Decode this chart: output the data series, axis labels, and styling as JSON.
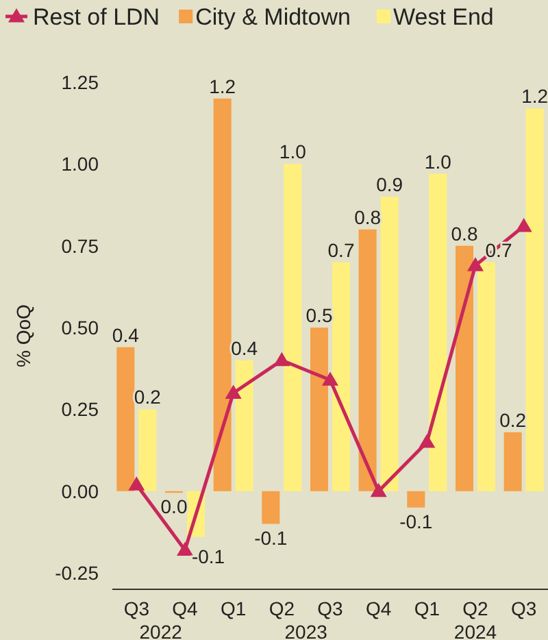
{
  "chart_data": {
    "type": "bar",
    "ylabel": "% QoQ",
    "categories": [
      "Q3",
      "Q4",
      "Q1",
      "Q2",
      "Q3",
      "Q4",
      "Q1",
      "Q2",
      "Q3"
    ],
    "series": [
      {
        "name": "Rest of LDN",
        "type": "line",
        "color": "#c8285a",
        "marker": "triangle",
        "values": [
          0.02,
          -0.18,
          0.3,
          0.4,
          0.34,
          0.0,
          0.15,
          0.69,
          0.81
        ]
      },
      {
        "name": "City & Midtown",
        "color": "#f5a04a",
        "values": [
          0.44,
          -0.005,
          1.2,
          -0.1,
          0.5,
          0.8,
          -0.05,
          0.75,
          0.18
        ],
        "value_labels": [
          "0.4",
          "0.0",
          "1.2",
          "-0.1",
          "0.5",
          "0.8",
          "-0.1",
          "0.8",
          "0.2"
        ]
      },
      {
        "name": "West End",
        "color": "#fff07e",
        "values": [
          0.25,
          -0.14,
          0.4,
          1.0,
          0.7,
          0.9,
          0.97,
          0.7,
          1.17
        ],
        "value_labels": [
          "0.2",
          "-0.1",
          "0.4",
          "1.0",
          "0.7",
          "0.9",
          "1.0",
          "0.7",
          "1.2"
        ]
      }
    ],
    "ylim": [
      -0.3,
      1.25
    ],
    "yticks": [
      {
        "value": -0.25,
        "label": "-0.25"
      },
      {
        "value": 0,
        "label": "0.00"
      },
      {
        "value": 0.25,
        "label": "0.25"
      },
      {
        "value": 0.5,
        "label": "0.50"
      },
      {
        "value": 0.75,
        "label": "0.75"
      },
      {
        "value": 1,
        "label": "1.00"
      },
      {
        "value": 1.25,
        "label": "1.25"
      }
    ],
    "grid": false,
    "legend": "top left",
    "annotations": [
      "2022",
      "2023",
      "2024"
    ]
  }
}
